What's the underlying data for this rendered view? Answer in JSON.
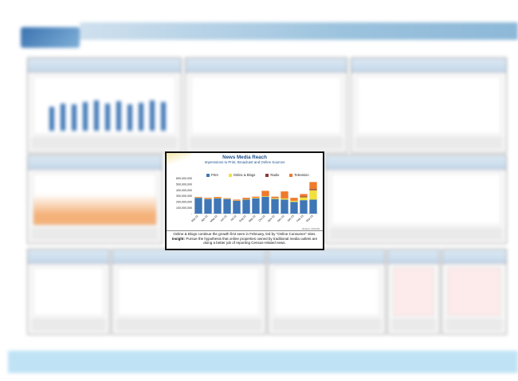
{
  "card": {
    "title": "News Media Reach",
    "subtitle": "Impressions to Print, Broadcast and Online Sources",
    "source": "Source: VOCUS",
    "caption": {
      "line1": "Online & Blogs continue the growth first seen in February, led by \"Online Consumer\" sites.",
      "insight_label": "Insight:",
      "insight_text": "Pursue the hypothesis that online properties owned by traditional media outlets are doing a better job of reporting Census-related news."
    }
  },
  "colors": {
    "print": "#3f76b6",
    "online_blogs": "#f1e13a",
    "radio": "#8a3a34",
    "television": "#ef7a2c"
  },
  "chart_data": {
    "type": "bar",
    "stacked": true,
    "title": "News Media Reach",
    "categories": [
      "Mar-12",
      "Apr-12",
      "May-12",
      "Jun-12",
      "Jul-12",
      "Aug-12",
      "Sep-12",
      "Oct-12",
      "Nov-12",
      "Dec-12",
      "Jan-13",
      "Feb-13",
      "Mar-13"
    ],
    "series": [
      {
        "name": "Print",
        "values": [
          270000000,
          250000000,
          260000000,
          250000000,
          220000000,
          240000000,
          260000000,
          290000000,
          250000000,
          240000000,
          200000000,
          230000000,
          240000000
        ]
      },
      {
        "name": "Online & Blogs",
        "values": [
          5000000,
          5000000,
          5000000,
          5000000,
          5000000,
          5000000,
          10000000,
          10000000,
          15000000,
          20000000,
          20000000,
          50000000,
          160000000
        ]
      },
      {
        "name": "Radio",
        "values": [
          0,
          0,
          0,
          0,
          0,
          0,
          0,
          0,
          5000000,
          0,
          0,
          15000000,
          20000000
        ]
      },
      {
        "name": "Television",
        "values": [
          10000000,
          15000000,
          20000000,
          10000000,
          15000000,
          25000000,
          20000000,
          90000000,
          20000000,
          120000000,
          50000000,
          40000000,
          120000000
        ]
      }
    ],
    "ylim": [
      0,
      600000000
    ],
    "yticks": [
      "600,000,000",
      "500,000,000",
      "400,000,000",
      "300,000,000",
      "200,000,000",
      "100,000,000",
      "-"
    ],
    "grid": false,
    "legend": "top"
  }
}
